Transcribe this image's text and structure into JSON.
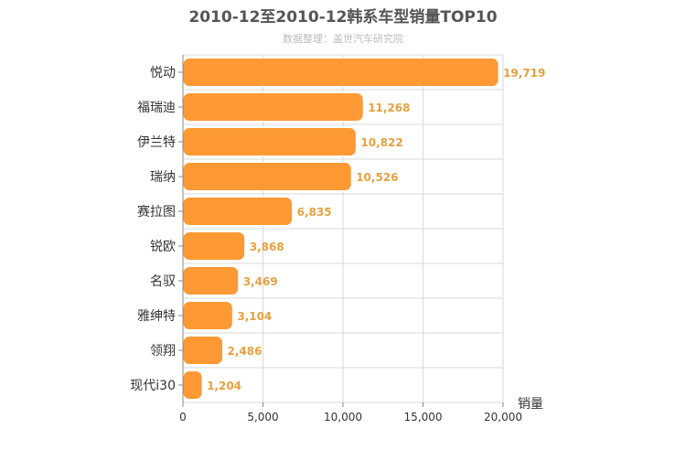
{
  "chart_data": {
    "type": "bar",
    "orientation": "horizontal",
    "title": "2010-12至2010-12韩系车型销量TOP10",
    "subtitle": "数据整理：盖世汽车研究院",
    "xlabel": "销量",
    "ylabel": "",
    "categories": [
      "悦动",
      "福瑞迪",
      "伊兰特",
      "瑞纳",
      "赛拉图",
      "锐欧",
      "名驭",
      "雅绅特",
      "领翔",
      "现代i30"
    ],
    "values": [
      19719,
      11268,
      10822,
      10526,
      6835,
      3868,
      3469,
      3104,
      2486,
      1204
    ],
    "value_labels": [
      "19,719",
      "11,268",
      "10,822",
      "10,526",
      "6,835",
      "3,868",
      "3,469",
      "3,104",
      "2,486",
      "1,204"
    ],
    "xlim": [
      0,
      20000
    ],
    "x_ticks": [
      0,
      5000,
      10000,
      15000,
      20000
    ],
    "x_tick_labels": [
      "0",
      "5,000",
      "10,000",
      "15,000",
      "20,000"
    ],
    "grid": true,
    "legend": "none",
    "colors": {
      "bar": "#ff9933",
      "bar_stroke": "#ffffff",
      "value_label": "#e8a040",
      "title": "#555555",
      "subtitle": "#bbbbbb",
      "grid": "#d8d8d8",
      "axis": "#888888",
      "text": "#333333"
    }
  }
}
